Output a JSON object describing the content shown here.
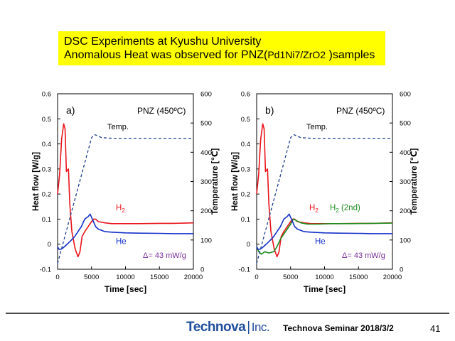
{
  "header": {
    "line1": "DSC Experiments at Kyushu University",
    "line2_prefix": "Anomalous Heat was observed for PNZ(",
    "line2_sample": "Pd1Ni7/ZrO2",
    "line2_suffix": " )samples"
  },
  "footer": {
    "logo_main": "Technova",
    "logo_sep": "|",
    "logo_inc": "Inc.",
    "seminar": "Technova Seminar 2018/3/2",
    "page": "41"
  },
  "colors": {
    "h2": "#e8141b",
    "he": "#1530c8",
    "h2_2nd": "#1e8c1e",
    "temp": "#1f3f8f",
    "delta": "#7a2e9a"
  },
  "chart_data": [
    {
      "type": "line",
      "panel_label": "a)",
      "sample_label": "PNZ (450ºC)",
      "temp_label": "Temp.",
      "delta_label": "Δ= 43 mW/g",
      "xlabel": "Time [sec]",
      "ylabel": "Heat flow  [W/g]",
      "y2label": "Temperature [℃]",
      "xlim": [
        0,
        20000
      ],
      "ylim": [
        -0.1,
        0.6
      ],
      "y2lim": [
        0,
        600
      ],
      "xticks": [
        0,
        5000,
        10000,
        15000,
        20000
      ],
      "yticks": [
        -0.1,
        0,
        0.1,
        0.2,
        0.3,
        0.4,
        0.5,
        0.6
      ],
      "y2ticks": [
        0,
        100,
        200,
        300,
        400,
        500,
        600
      ],
      "series": [
        {
          "name": "H2",
          "label_sub": "2",
          "label_base": "H",
          "axis": "left",
          "color_key": "h2",
          "x": [
            0,
            300,
            600,
            900,
            1100,
            1300,
            1600,
            1800,
            2100,
            2600,
            3000,
            3300,
            3600,
            4000,
            4500,
            5000,
            5300,
            5600,
            6000,
            7000,
            8000,
            10000,
            12000,
            15000,
            17000,
            20000
          ],
          "y": [
            0.2,
            0.28,
            0.42,
            0.48,
            0.46,
            0.29,
            0.3,
            0.16,
            0.05,
            -0.02,
            -0.05,
            -0.03,
            0.03,
            0.05,
            0.07,
            0.09,
            0.1,
            0.1,
            0.09,
            0.085,
            0.082,
            0.082,
            0.082,
            0.083,
            0.083,
            0.085
          ]
        },
        {
          "name": "He",
          "label_sub": "",
          "label_base": "He",
          "axis": "left",
          "color_key": "he",
          "x": [
            0,
            200,
            500,
            800,
            1200,
            1800,
            2500,
            3000,
            3500,
            4000,
            4500,
            4800,
            5200,
            5600,
            6000,
            7000,
            8000,
            10000,
            12000,
            15000,
            17000,
            20000
          ],
          "y": [
            -0.01,
            -0.02,
            -0.02,
            -0.015,
            -0.005,
            0.01,
            0.03,
            0.05,
            0.07,
            0.1,
            0.11,
            0.12,
            0.095,
            0.07,
            0.06,
            0.05,
            0.048,
            0.045,
            0.044,
            0.043,
            0.042,
            0.042
          ]
        },
        {
          "name": "Temp.",
          "axis": "right",
          "color_key": "temp",
          "dashed": true,
          "x": [
            0,
            5000,
            5500,
            6500,
            8000,
            20000
          ],
          "y": [
            20,
            450,
            460,
            450,
            448,
            448
          ]
        }
      ]
    },
    {
      "type": "line",
      "panel_label": "b)",
      "sample_label": "PNZ (450ºC)",
      "temp_label": "Temp.",
      "delta_label": "Δ= 43 mW/g",
      "xlabel": "Time [sec]",
      "ylabel": "Heat flow  [W/g]",
      "y2label": "Temperature [℃]",
      "xlim": [
        0,
        20000
      ],
      "ylim": [
        -0.1,
        0.6
      ],
      "y2lim": [
        0,
        600
      ],
      "xticks": [
        0,
        5000,
        10000,
        15000,
        20000
      ],
      "yticks": [
        -0.1,
        0,
        0.1,
        0.2,
        0.3,
        0.4,
        0.5,
        0.6
      ],
      "y2ticks": [
        0,
        100,
        200,
        300,
        400,
        500,
        600
      ],
      "series": [
        {
          "name": "H2",
          "label_sub": "2",
          "label_base": "H",
          "axis": "left",
          "color_key": "h2",
          "x": [
            0,
            300,
            600,
            900,
            1100,
            1300,
            1600,
            1800,
            2100,
            2600,
            3000,
            3300,
            3600,
            4000,
            4500,
            5000,
            5300,
            5600,
            6000,
            7000,
            8000,
            10000,
            12000,
            15000,
            17000,
            20000
          ],
          "y": [
            0.2,
            0.28,
            0.42,
            0.48,
            0.46,
            0.29,
            0.3,
            0.16,
            0.05,
            -0.02,
            -0.05,
            -0.03,
            0.03,
            0.05,
            0.07,
            0.09,
            0.1,
            0.1,
            0.09,
            0.085,
            0.082,
            0.082,
            0.082,
            0.083,
            0.083,
            0.085
          ]
        },
        {
          "name": "H2 (2nd)",
          "label_sub": "2",
          "label_base": "H",
          "label_suffix": " (2nd)",
          "axis": "left",
          "color_key": "h2_2nd",
          "x": [
            0,
            300,
            700,
            1200,
            1800,
            2500,
            3000,
            3500,
            4000,
            4500,
            5000,
            5400,
            5800,
            6500,
            7500,
            9000,
            11000,
            14000,
            17000,
            20000
          ],
          "y": [
            -0.01,
            -0.03,
            -0.04,
            -0.03,
            -0.035,
            -0.03,
            -0.01,
            0.02,
            0.04,
            0.06,
            0.08,
            0.1,
            0.095,
            0.085,
            0.08,
            0.08,
            0.082,
            0.082,
            0.083,
            0.084
          ]
        },
        {
          "name": "He",
          "label_sub": "",
          "label_base": "He",
          "axis": "left",
          "color_key": "he",
          "x": [
            0,
            200,
            500,
            800,
            1200,
            1800,
            2500,
            3000,
            3500,
            4000,
            4500,
            4800,
            5200,
            5600,
            6000,
            7000,
            8000,
            10000,
            12000,
            15000,
            17000,
            20000
          ],
          "y": [
            -0.01,
            -0.02,
            -0.02,
            -0.015,
            -0.005,
            0.01,
            0.03,
            0.05,
            0.07,
            0.1,
            0.11,
            0.12,
            0.095,
            0.07,
            0.06,
            0.05,
            0.048,
            0.045,
            0.044,
            0.043,
            0.042,
            0.042
          ]
        },
        {
          "name": "Temp.",
          "axis": "right",
          "color_key": "temp",
          "dashed": true,
          "x": [
            0,
            5000,
            5500,
            6500,
            8000,
            20000
          ],
          "y": [
            20,
            450,
            460,
            450,
            448,
            448
          ]
        }
      ]
    }
  ]
}
